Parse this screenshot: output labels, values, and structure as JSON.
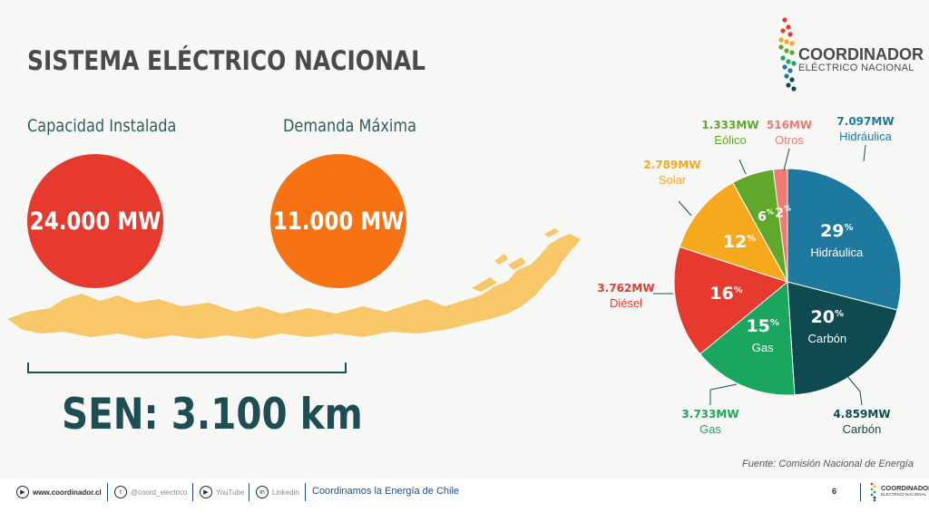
{
  "title": "SISTEMA ELÉCTRICO NACIONAL",
  "logo": {
    "name": "COORDINADOR",
    "sub": "ELÉCTRICO NACIONAL"
  },
  "metrics": [
    {
      "label": "Capacidad Instalada",
      "value": "24.000 MW",
      "color": "#e63a2e"
    },
    {
      "label": "Demanda Máxima",
      "value": "11.000 MW",
      "color": "#f77212"
    }
  ],
  "length_label": "SEN: 3.100 km",
  "source": "Fuente: Comisión Nacional de Energía",
  "chart_data": {
    "type": "pie",
    "slices": [
      {
        "name": "Hidráulica",
        "mw": "7.097MW",
        "percent": 29,
        "color": "#1d7a9e",
        "show_inner_name": true
      },
      {
        "name": "Carbón",
        "mw": "4.859MW",
        "percent": 20,
        "color": "#0f4a50",
        "show_inner_name": true
      },
      {
        "name": "Gas",
        "mw": "3.733MW",
        "percent": 15,
        "color": "#1aa65e",
        "show_inner_name": true
      },
      {
        "name": "Diésel",
        "mw": "3.762MW",
        "percent": 16,
        "color": "#e63a2e",
        "show_inner_name": false
      },
      {
        "name": "Solar",
        "mw": "2.789MW",
        "percent": 12,
        "color": "#f7a81c",
        "show_inner_name": false
      },
      {
        "name": "Eólico",
        "mw": "1.333MW",
        "percent": 6,
        "color": "#5fa82c",
        "show_inner_name": false
      },
      {
        "name": "Otros",
        "mw": "516MW",
        "percent": 2,
        "color": "#f07a72",
        "show_inner_name": false
      }
    ]
  },
  "footer": {
    "website": "www.coordinador.cl",
    "twitter": "@coord_electrico",
    "youtube": "YouTube",
    "linkedin": "Linkedin",
    "slogan": "Coordinamos la Energía de Chile",
    "page": "6",
    "logo_name": "COORDINADOR",
    "logo_sub": "ELÉCTRICO NACIONAL"
  }
}
